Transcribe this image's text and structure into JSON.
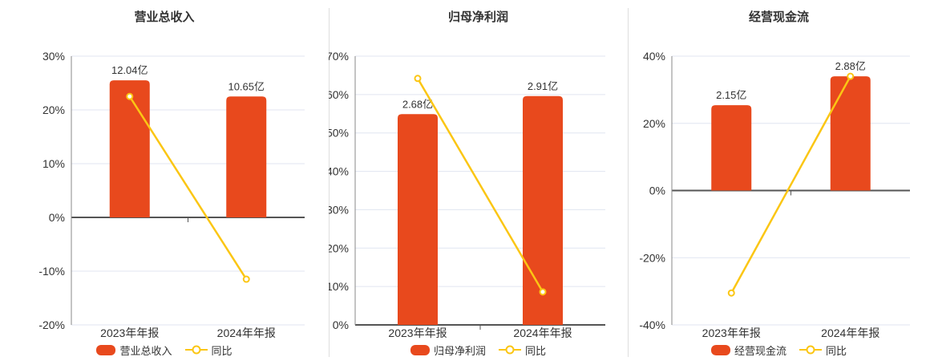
{
  "colors": {
    "bar": "#e8491d",
    "line": "#fbc614",
    "grid": "#e0e5f1",
    "y_axis": "#888888",
    "zero_axis": "#555555",
    "text": "#333333",
    "separator": "#dedede",
    "marker_fill": "#ffffff",
    "background": "#ffffff"
  },
  "chart_data": [
    {
      "type": "bar",
      "title": "营业总收入",
      "categories": [
        "2023年年报",
        "2024年年报"
      ],
      "series": [
        {
          "type": "bar",
          "name": "营业总收入",
          "values": [
            12.04,
            10.65
          ],
          "unit": "亿",
          "labels": [
            "12.04亿",
            "10.65亿"
          ],
          "bar_heights_axis_units": [
            25.5,
            22.5
          ]
        },
        {
          "type": "line",
          "name": "同比",
          "values_pct": [
            22.5,
            -11.5
          ]
        }
      ],
      "ylim": [
        -20,
        30
      ],
      "ytick_step": 10,
      "ytick_suffix": "%",
      "grid": true,
      "legend_position": "bottom"
    },
    {
      "type": "bar",
      "title": "归母净利润",
      "categories": [
        "2023年年报",
        "2024年年报"
      ],
      "series": [
        {
          "type": "bar",
          "name": "归母净利润",
          "values": [
            2.68,
            2.91
          ],
          "unit": "亿",
          "labels": [
            "2.68亿",
            "2.91亿"
          ],
          "bar_heights_axis_units": [
            54.9,
            59.6
          ]
        },
        {
          "type": "line",
          "name": "同比",
          "values_pct": [
            64.2,
            8.6
          ]
        }
      ],
      "ylim": [
        0,
        70
      ],
      "ytick_step": 10,
      "ytick_suffix": "%",
      "grid": true,
      "legend_position": "bottom"
    },
    {
      "type": "bar",
      "title": "经营现金流",
      "categories": [
        "2023年年报",
        "2024年年报"
      ],
      "series": [
        {
          "type": "bar",
          "name": "经营现金流",
          "values": [
            2.15,
            2.88
          ],
          "unit": "亿",
          "labels": [
            "2.15亿",
            "2.88亿"
          ],
          "bar_heights_axis_units": [
            25.4,
            34.0
          ]
        },
        {
          "type": "line",
          "name": "同比",
          "values_pct": [
            -30.5,
            34.0
          ]
        }
      ],
      "ylim": [
        -40,
        40
      ],
      "ytick_step": 20,
      "ytick_suffix": "%",
      "grid": true,
      "legend_position": "bottom"
    }
  ]
}
